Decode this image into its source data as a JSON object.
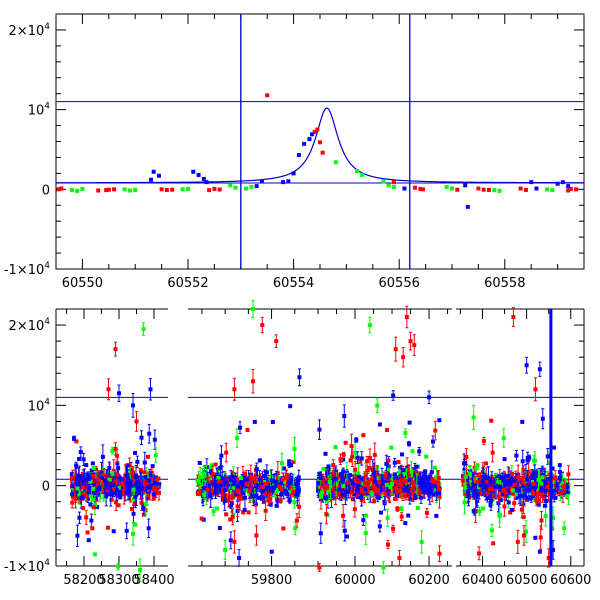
{
  "colors": {
    "blue": "#0000ff",
    "red": "#ff0000",
    "green": "#00ff00",
    "line": "#0000cc"
  },
  "chart_data": [
    {
      "type": "scatter",
      "title": "",
      "xlabel": "",
      "ylabel": "",
      "xlim": [
        60549.5,
        60559.5
      ],
      "ylim": [
        -10000,
        22000
      ],
      "x_ticks": [
        60550,
        60552,
        60554,
        60556,
        60558
      ],
      "x_tick_labels": [
        "60550",
        "60552",
        "60554",
        "60556",
        "60558"
      ],
      "y_ticks": [
        -10000,
        0,
        10000,
        20000
      ],
      "y_tick_labels": [
        {
          "base": "-1×10",
          "exp": "4"
        },
        {
          "base": "0",
          "exp": ""
        },
        {
          "base": "10",
          "exp": "4"
        },
        {
          "base": "2×10",
          "exp": "4"
        }
      ],
      "hlines": [
        800,
        11000
      ],
      "vlines": [
        60553.0,
        60556.2
      ],
      "model_curve": {
        "t0": 60554.63,
        "peak": 10200,
        "baseline": 800,
        "width": 0.3
      },
      "series": [
        {
          "color": "red",
          "points": [
            [
              60549.55,
              0
            ],
            [
              60549.6,
              100
            ],
            [
              60550.3,
              -150
            ],
            [
              60550.45,
              -100
            ],
            [
              60550.5,
              -50
            ],
            [
              60550.6,
              0
            ],
            [
              60551.5,
              0
            ],
            [
              60551.6,
              -80
            ],
            [
              60551.7,
              -50
            ],
            [
              60552.4,
              -100
            ],
            [
              60552.5,
              50
            ],
            [
              60552.6,
              -30
            ],
            [
              60553.5,
              11800
            ],
            [
              60554.4,
              7200
            ],
            [
              60554.45,
              7500
            ],
            [
              60554.5,
              5900
            ],
            [
              60554.55,
              4600
            ],
            [
              60555.9,
              900
            ],
            [
              60556.3,
              200
            ],
            [
              60556.4,
              50
            ],
            [
              60556.45,
              0
            ],
            [
              60557.1,
              -50
            ],
            [
              60557.5,
              100
            ],
            [
              60557.6,
              -50
            ],
            [
              60557.7,
              -80
            ],
            [
              60558.3,
              100
            ],
            [
              60558.4,
              -80
            ],
            [
              60559.2,
              -150
            ],
            [
              60559.25,
              50
            ],
            [
              60559.35,
              0
            ]
          ]
        },
        {
          "color": "green",
          "points": [
            [
              60549.8,
              -100
            ],
            [
              60549.9,
              -200
            ],
            [
              60550.0,
              50
            ],
            [
              60550.8,
              0
            ],
            [
              60550.9,
              -150
            ],
            [
              60551.0,
              -80
            ],
            [
              60551.9,
              0
            ],
            [
              60552.0,
              50
            ],
            [
              60552.8,
              500
            ],
            [
              60552.9,
              200
            ],
            [
              60553.1,
              100
            ],
            [
              60553.2,
              300
            ],
            [
              60554.8,
              3400
            ],
            [
              60555.2,
              2300
            ],
            [
              60555.3,
              1800
            ],
            [
              60555.7,
              1000
            ],
            [
              60555.8,
              500
            ],
            [
              60555.9,
              300
            ],
            [
              60556.9,
              300
            ],
            [
              60557.0,
              100
            ],
            [
              60557.8,
              -100
            ],
            [
              60557.9,
              -200
            ],
            [
              60558.8,
              0
            ],
            [
              60558.9,
              -100
            ]
          ]
        },
        {
          "color": "blue",
          "points": [
            [
              60551.3,
              1200
            ],
            [
              60551.35,
              2200
            ],
            [
              60551.45,
              1700
            ],
            [
              60552.1,
              2200
            ],
            [
              60552.2,
              1800
            ],
            [
              60552.3,
              1300
            ],
            [
              60552.35,
              900
            ],
            [
              60553.3,
              400
            ],
            [
              60553.4,
              1000
            ],
            [
              60553.8,
              900
            ],
            [
              60553.9,
              1000
            ],
            [
              60554.0,
              2000
            ],
            [
              60554.1,
              4300
            ],
            [
              60554.2,
              5700
            ],
            [
              60554.3,
              6300
            ],
            [
              60554.35,
              6900
            ],
            [
              60556.1,
              100
            ],
            [
              60557.25,
              500
            ],
            [
              60557.3,
              -2200
            ],
            [
              60558.5,
              900
            ],
            [
              60558.6,
              100
            ],
            [
              60559.0,
              700
            ],
            [
              60559.1,
              900
            ],
            [
              60559.2,
              400
            ]
          ]
        }
      ]
    },
    {
      "type": "scatter",
      "title": "",
      "xlabel": "",
      "ylabel": "",
      "xlim_segments": [
        [
          58120,
          58440
        ],
        [
          59620,
          59900
        ],
        [
          59880,
          60260
        ],
        [
          60340,
          60630
        ]
      ],
      "ylim": [
        -10000,
        22000
      ],
      "x_ticks": [
        58200,
        58300,
        58400,
        59800,
        60000,
        60200,
        60400,
        60500,
        60600
      ],
      "x_tick_labels": [
        "58200",
        "58300",
        "58400",
        "59800",
        "60000",
        "60200",
        "60400",
        "60500",
        "60600"
      ],
      "y_ticks": [
        -10000,
        0,
        10000,
        20000
      ],
      "y_tick_labels": [
        {
          "base": "-1×10",
          "exp": "4"
        },
        {
          "base": "0",
          "exp": ""
        },
        {
          "base": "10",
          "exp": "4"
        },
        {
          "base": "2×10",
          "exp": "4"
        }
      ],
      "hlines": [
        800,
        11000
      ],
      "vline_marker": 60555,
      "seasons": [
        {
          "start": 58165,
          "end": 58415
        },
        {
          "start": 59640,
          "end": 59860
        },
        {
          "start": 59900,
          "end": 60230
        },
        {
          "start": 60355,
          "end": 60595
        }
      ],
      "outliers": {
        "red": [
          [
            58290,
            17000
          ],
          [
            58270,
            12000
          ],
          [
            58350,
            8000
          ],
          [
            59720,
            12000
          ],
          [
            59760,
            13000
          ],
          [
            59780,
            20000
          ],
          [
            59810,
            18000
          ],
          [
            59720,
            -7000
          ],
          [
            60110,
            17000
          ],
          [
            60130,
            16000
          ],
          [
            60140,
            21000
          ],
          [
            60150,
            18000
          ],
          [
            60160,
            17500
          ],
          [
            60120,
            -9000
          ],
          [
            60470,
            21000
          ],
          [
            60520,
            12000
          ],
          [
            60550,
            -9000
          ],
          [
            60480,
            -7000
          ]
        ],
        "green": [
          [
            58370,
            19500
          ],
          [
            58340,
            -6000
          ],
          [
            58360,
            -10500
          ],
          [
            59700,
            -8000
          ],
          [
            59760,
            22000
          ],
          [
            60040,
            20000
          ],
          [
            60060,
            10000
          ],
          [
            60180,
            -7000
          ],
          [
            60560,
            -4000
          ],
          [
            60380,
            8500
          ]
        ],
        "blue": [
          [
            58300,
            11500
          ],
          [
            58340,
            10000
          ],
          [
            58390,
            12000
          ],
          [
            59860,
            13500
          ],
          [
            60200,
            11000
          ],
          [
            60500,
            15000
          ],
          [
            60530,
            14500
          ],
          [
            60560,
            -8000
          ],
          [
            59730,
            -9000
          ]
        ]
      }
    }
  ]
}
